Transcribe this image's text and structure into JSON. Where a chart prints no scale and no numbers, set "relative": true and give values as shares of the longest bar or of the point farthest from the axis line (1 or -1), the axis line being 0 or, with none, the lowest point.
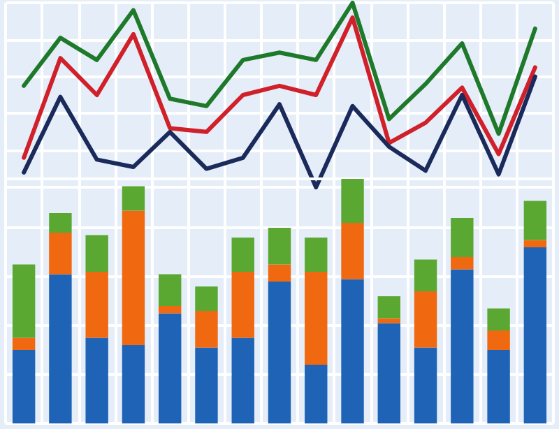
{
  "chart_data": [
    {
      "type": "line",
      "relative": true,
      "grid": true,
      "marker": "none",
      "line_style": "solid",
      "categories": [
        null,
        null,
        null,
        null,
        null,
        null,
        null,
        null,
        null,
        null,
        null,
        null,
        null,
        null,
        null
      ],
      "series": [
        {
          "color": "#1e7a2a",
          "values": [
            0.55,
            0.81,
            0.69,
            0.96,
            0.48,
            0.44,
            0.69,
            0.73,
            0.69,
            1.0,
            0.37,
            0.56,
            0.78,
            0.29,
            0.86
          ]
        },
        {
          "color": "#d0202a",
          "values": [
            0.16,
            0.7,
            0.5,
            0.83,
            0.32,
            0.3,
            0.5,
            0.55,
            0.5,
            0.92,
            0.24,
            0.35,
            0.54,
            0.18,
            0.65
          ]
        },
        {
          "color": "#1a2a5a",
          "values": [
            0.08,
            0.49,
            0.15,
            0.11,
            0.3,
            0.1,
            0.16,
            0.45,
            0,
            0.44,
            0.22,
            0.09,
            0.5,
            0.07,
            0.6
          ]
        }
      ]
    },
    {
      "type": "bar",
      "relative": true,
      "stacked": true,
      "grid": true,
      "categories": [
        null,
        null,
        null,
        null,
        null,
        null,
        null,
        null,
        null,
        null,
        null,
        null,
        null,
        null,
        null
      ],
      "series": [
        {
          "color": "#1f63b6",
          "values": [
            0.3,
            0.61,
            0.35,
            0.32,
            0.45,
            0.31,
            0.35,
            0.58,
            0.24,
            0.59,
            0.41,
            0.31,
            0.63,
            0.3,
            0.72
          ]
        },
        {
          "color": "#f0680f",
          "values": [
            0.05,
            0.17,
            0.27,
            0.55,
            0.03,
            0.15,
            0.27,
            0.07,
            0.38,
            0.23,
            0.02,
            0.23,
            0.05,
            0.08,
            0.03
          ]
        },
        {
          "color": "#5aa832",
          "values": [
            0.3,
            0.08,
            0.15,
            0.1,
            0.13,
            0.1,
            0.14,
            0.15,
            0.14,
            0.18,
            0.09,
            0.13,
            0.16,
            0.09,
            0.16
          ]
        }
      ]
    }
  ]
}
